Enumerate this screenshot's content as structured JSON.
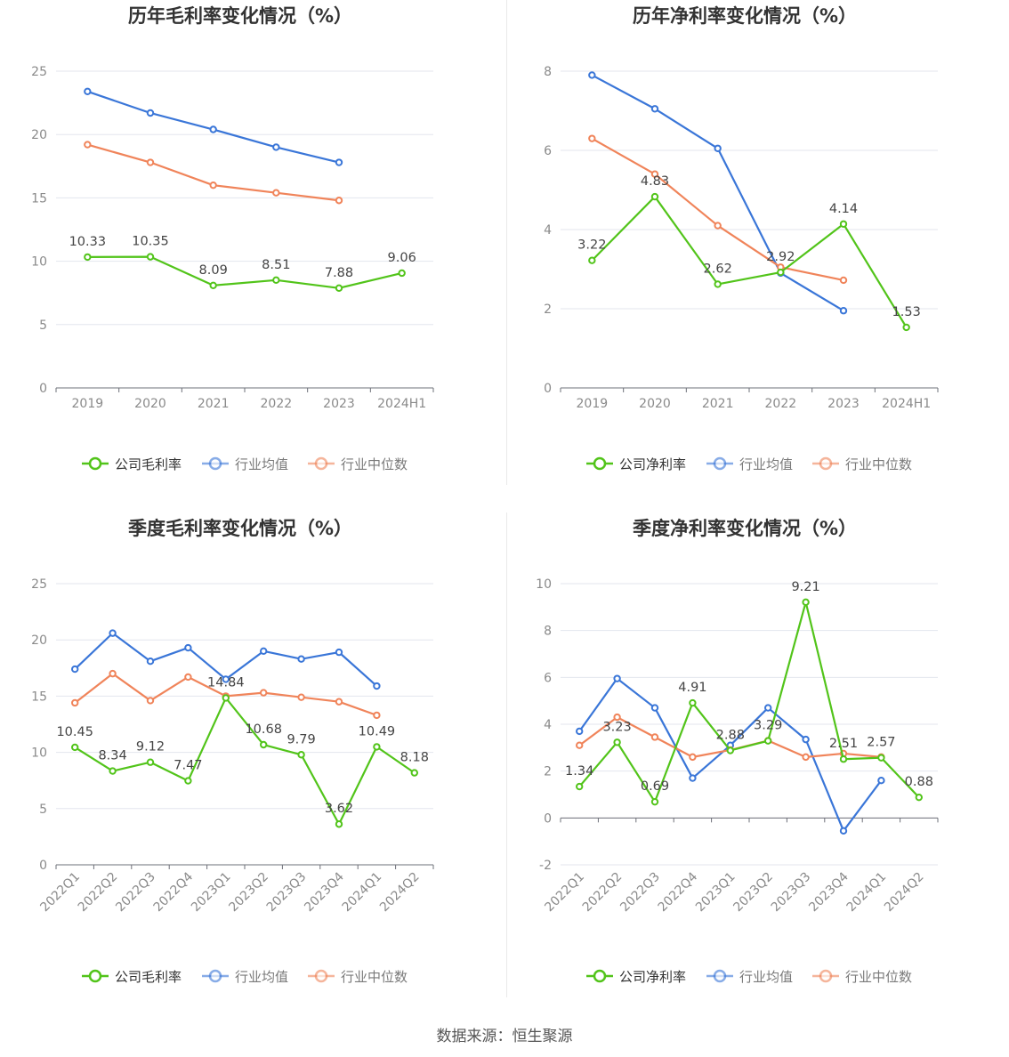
{
  "colors": {
    "company": "#52c41a",
    "industry_avg": "#3a76d8",
    "industry_median": "#f0845a",
    "grid": "#e3e6ee",
    "axis": "#6e7079",
    "tick": "#8a8a8a",
    "title": "#333333",
    "label": "#444444"
  },
  "source": "数据来源：恒生聚源",
  "chart_data": [
    {
      "id": "annual-gross",
      "type": "line",
      "title": "历年毛利率变化情况（%）",
      "categories": [
        "2019",
        "2020",
        "2021",
        "2022",
        "2023",
        "2024H1"
      ],
      "ylim": [
        0,
        25
      ],
      "yticks": [
        0,
        5,
        10,
        15,
        20,
        25
      ],
      "rotate_x": false,
      "grid": true,
      "legend_position": "bottom",
      "series": [
        {
          "name": "公司毛利率",
          "key": "company",
          "values": [
            10.33,
            10.35,
            8.09,
            8.51,
            7.88,
            9.06
          ],
          "labels": [
            "10.33",
            "10.35",
            "8.09",
            "8.51",
            "7.88",
            "9.06"
          ]
        },
        {
          "name": "行业均值",
          "key": "industry_avg",
          "values": [
            23.4,
            21.7,
            20.4,
            19.0,
            17.8,
            null
          ]
        },
        {
          "name": "行业中位数",
          "key": "industry_median",
          "values": [
            19.2,
            17.8,
            16.0,
            15.4,
            14.8,
            null
          ]
        }
      ]
    },
    {
      "id": "annual-net",
      "type": "line",
      "title": "历年净利率变化情况（%）",
      "categories": [
        "2019",
        "2020",
        "2021",
        "2022",
        "2023",
        "2024H1"
      ],
      "ylim": [
        0,
        8
      ],
      "yticks": [
        0,
        2,
        4,
        6,
        8
      ],
      "rotate_x": false,
      "grid": true,
      "legend_position": "bottom",
      "series": [
        {
          "name": "公司净利率",
          "key": "company",
          "values": [
            3.22,
            4.83,
            2.62,
            2.92,
            4.14,
            1.53
          ],
          "labels": [
            "3.22",
            "4.83",
            "2.62",
            "2.92",
            "4.14",
            "1.53"
          ]
        },
        {
          "name": "行业均值",
          "key": "industry_avg",
          "values": [
            7.9,
            7.05,
            6.05,
            2.9,
            1.95,
            null
          ]
        },
        {
          "name": "行业中位数",
          "key": "industry_median",
          "values": [
            6.3,
            5.4,
            4.1,
            3.05,
            2.72,
            null
          ]
        }
      ]
    },
    {
      "id": "quarterly-gross",
      "type": "line",
      "title": "季度毛利率变化情况（%）",
      "categories": [
        "2022Q1",
        "2022Q2",
        "2022Q3",
        "2022Q4",
        "2023Q1",
        "2023Q2",
        "2023Q3",
        "2023Q4",
        "2024Q1",
        "2024Q2"
      ],
      "ylim": [
        0,
        25
      ],
      "yticks": [
        0,
        5,
        10,
        15,
        20,
        25
      ],
      "rotate_x": true,
      "grid": true,
      "legend_position": "bottom",
      "series": [
        {
          "name": "公司毛利率",
          "key": "company",
          "values": [
            10.45,
            8.34,
            9.12,
            7.47,
            14.84,
            10.68,
            9.79,
            3.62,
            10.49,
            8.18
          ],
          "labels": [
            "10.45",
            "8.34",
            "9.12",
            "7.47",
            "14.84",
            "10.68",
            "9.79",
            "3.62",
            "10.49",
            "8.18"
          ]
        },
        {
          "name": "行业均值",
          "key": "industry_avg",
          "values": [
            17.4,
            20.6,
            18.1,
            19.3,
            16.5,
            19.0,
            18.3,
            18.9,
            15.9,
            null
          ]
        },
        {
          "name": "行业中位数",
          "key": "industry_median",
          "values": [
            14.4,
            17.0,
            14.6,
            16.7,
            15.0,
            15.3,
            14.9,
            14.5,
            13.3,
            null
          ]
        }
      ]
    },
    {
      "id": "quarterly-net",
      "type": "line",
      "title": "季度净利率变化情况（%）",
      "categories": [
        "2022Q1",
        "2022Q2",
        "2022Q3",
        "2022Q4",
        "2023Q1",
        "2023Q2",
        "2023Q3",
        "2023Q4",
        "2024Q1",
        "2024Q2"
      ],
      "ylim": [
        -2,
        10
      ],
      "yticks": [
        -2,
        0,
        2,
        4,
        6,
        8,
        10
      ],
      "rotate_x": true,
      "grid": true,
      "legend_position": "bottom",
      "series": [
        {
          "name": "公司净利率",
          "key": "company",
          "values": [
            1.34,
            3.23,
            0.69,
            4.91,
            2.88,
            3.29,
            9.21,
            2.51,
            2.57,
            0.88
          ],
          "labels": [
            "1.34",
            "3.23",
            "0.69",
            "4.91",
            "2.88",
            "3.29",
            "9.21",
            "2.51",
            "2.57",
            "0.88"
          ]
        },
        {
          "name": "行业均值",
          "key": "industry_avg",
          "values": [
            3.7,
            5.95,
            4.7,
            1.7,
            3.1,
            4.7,
            3.35,
            -0.55,
            1.6,
            null
          ]
        },
        {
          "name": "行业中位数",
          "key": "industry_median",
          "values": [
            3.1,
            4.3,
            3.45,
            2.6,
            2.9,
            3.3,
            2.6,
            2.75,
            2.6,
            null
          ]
        }
      ]
    }
  ]
}
